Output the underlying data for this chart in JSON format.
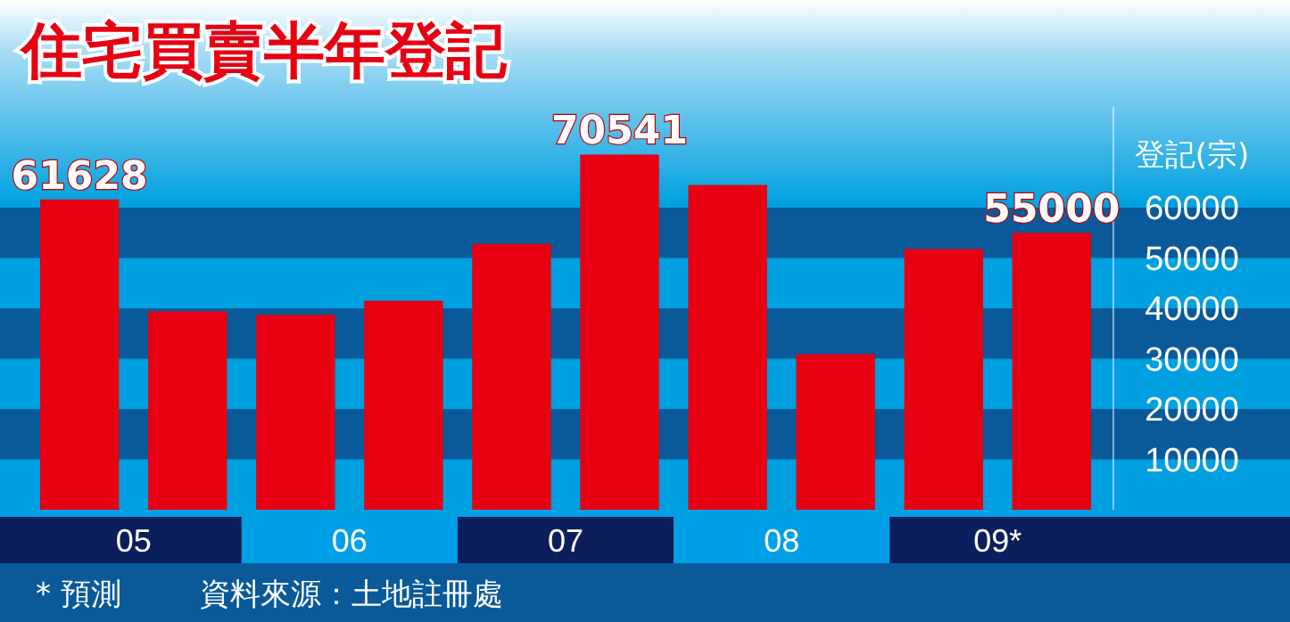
{
  "chart_data": {
    "type": "bar",
    "title": "住宅買賣半年登記",
    "ylabel": "登記(宗)",
    "categories": [
      "05",
      null,
      "06",
      null,
      "07",
      null,
      "08",
      null,
      "09*",
      null
    ],
    "values": [
      61628,
      39400,
      38700,
      41500,
      52800,
      70541,
      64500,
      30900,
      51800,
      55000
    ],
    "value_labels": [
      "61628",
      null,
      null,
      null,
      null,
      "70541",
      null,
      null,
      null,
      "55000"
    ],
    "color": "#e60012",
    "ylim": [
      0,
      80000
    ],
    "yticks": [
      10000,
      20000,
      30000,
      40000,
      50000,
      60000
    ],
    "bands": [
      {
        "axis": "y",
        "from": 10000,
        "to": 20000,
        "color": "#0a5a9a"
      },
      {
        "axis": "y",
        "from": 30000,
        "to": 40000,
        "color": "#0a5a9a"
      },
      {
        "axis": "y",
        "from": 50000,
        "to": 60000,
        "color": "#0a5a9a"
      }
    ],
    "annotations": [
      "* 預測",
      "資料來源：土地註冊處"
    ]
  }
}
